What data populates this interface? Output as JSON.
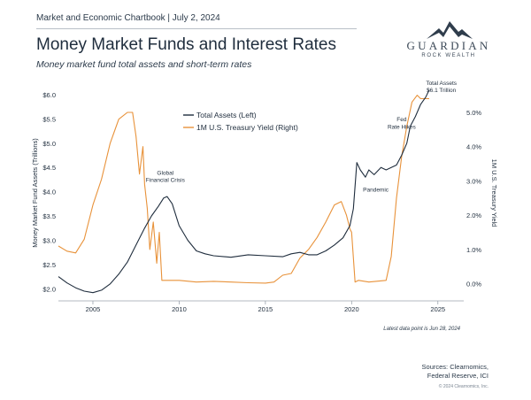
{
  "header": {
    "chartbook": "Market and Economic Chartbook | July 2, 2024",
    "title": "Money Market Funds and Interest Rates",
    "subtitle": "Money market fund total assets and short-term rates"
  },
  "logo": {
    "name": "GUARDIAN",
    "tagline": "ROCK WEALTH"
  },
  "footer": {
    "latest_note": "Latest data point is Jun 28, 2024",
    "sources_line1": "Sources: Clearnomics,",
    "sources_line2": "Federal Reserve, ICI",
    "copyright": "© 2024 Clearnomics, Inc."
  },
  "colors": {
    "assets": "#1f2d3d",
    "yield": "#e8923a",
    "axis": "#9aa3ad"
  },
  "chart_data": {
    "type": "line",
    "title": "Money Market Funds and Interest Rates",
    "ylabel": "Money Market Fund Assets (Trillions)",
    "y2label": "1M U.S. Treasury Yield",
    "xlim": [
      2003,
      2026.5
    ],
    "ylim": [
      1.75,
      6.2
    ],
    "y2lim": [
      -0.5,
      5.8
    ],
    "x_ticks": [
      2005,
      2010,
      2015,
      2020,
      2025
    ],
    "y_ticks": [
      2.0,
      2.5,
      3.0,
      3.5,
      4.0,
      4.5,
      5.0,
      5.5,
      6.0
    ],
    "y_tick_labels": [
      "$2.0",
      "$2.5",
      "$3.0",
      "$3.5",
      "$4.0",
      "$4.5",
      "$5.0",
      "$5.5",
      "$6.0"
    ],
    "y2_ticks": [
      0,
      1,
      2,
      3,
      4,
      5
    ],
    "y2_tick_labels": [
      "0.0%",
      "1.0%",
      "2.0%",
      "3.0%",
      "4.0%",
      "5.0%"
    ],
    "legend_position": "top-center",
    "series": [
      {
        "name": "Total Assets (Left)",
        "axis": "left",
        "x": [
          2003.0,
          2003.5,
          2004.0,
          2004.5,
          2005.0,
          2005.5,
          2006.0,
          2006.5,
          2007.0,
          2007.5,
          2008.0,
          2008.4,
          2008.8,
          2009.1,
          2009.3,
          2009.6,
          2010.0,
          2010.5,
          2011.0,
          2011.5,
          2012.0,
          2013.0,
          2014.0,
          2015.0,
          2016.0,
          2016.5,
          2017.0,
          2017.5,
          2018.0,
          2018.5,
          2019.0,
          2019.5,
          2019.9,
          2020.1,
          2020.3,
          2020.5,
          2020.8,
          2021.0,
          2021.3,
          2021.7,
          2022.0,
          2022.3,
          2022.6,
          2022.9,
          2023.2,
          2023.4,
          2023.7,
          2024.0,
          2024.3,
          2024.5
        ],
        "values": [
          2.25,
          2.12,
          2.02,
          1.95,
          1.92,
          1.97,
          2.1,
          2.3,
          2.55,
          2.9,
          3.25,
          3.5,
          3.7,
          3.87,
          3.9,
          3.75,
          3.3,
          3.0,
          2.78,
          2.72,
          2.68,
          2.65,
          2.7,
          2.68,
          2.66,
          2.72,
          2.75,
          2.7,
          2.7,
          2.78,
          2.9,
          3.05,
          3.3,
          3.65,
          4.6,
          4.45,
          4.3,
          4.45,
          4.35,
          4.5,
          4.45,
          4.5,
          4.55,
          4.75,
          5.0,
          5.35,
          5.55,
          5.8,
          5.95,
          6.1
        ]
      },
      {
        "name": "1M U.S. Treasury Yield (Right)",
        "axis": "right",
        "x": [
          2003.0,
          2003.5,
          2004.0,
          2004.5,
          2005.0,
          2005.5,
          2006.0,
          2006.5,
          2007.0,
          2007.3,
          2007.5,
          2007.7,
          2007.9,
          2008.0,
          2008.15,
          2008.3,
          2008.5,
          2008.7,
          2008.85,
          2009.0,
          2010.0,
          2011.0,
          2012.0,
          2013.0,
          2014.0,
          2015.0,
          2015.5,
          2016.0,
          2016.5,
          2017.0,
          2017.5,
          2018.0,
          2018.5,
          2019.0,
          2019.4,
          2019.7,
          2019.9,
          2020.0,
          2020.2,
          2020.4,
          2021.0,
          2022.0,
          2022.3,
          2022.6,
          2022.9,
          2023.2,
          2023.5,
          2023.8,
          2024.0,
          2024.5
        ],
        "values": [
          1.1,
          0.95,
          0.9,
          1.3,
          2.3,
          3.05,
          4.1,
          4.8,
          5.0,
          5.0,
          4.3,
          3.2,
          4.0,
          2.9,
          2.2,
          1.0,
          1.8,
          0.6,
          1.5,
          0.1,
          0.1,
          0.05,
          0.07,
          0.05,
          0.03,
          0.02,
          0.05,
          0.25,
          0.3,
          0.75,
          1.0,
          1.35,
          1.8,
          2.3,
          2.4,
          2.0,
          1.6,
          1.5,
          0.05,
          0.1,
          0.05,
          0.1,
          0.8,
          2.5,
          3.7,
          4.6,
          5.3,
          5.5,
          5.4,
          5.4
        ]
      }
    ],
    "annotations": [
      {
        "text": "Global",
        "x": 2009.2,
        "y": 4.35
      },
      {
        "text": "Financial Crisis",
        "x": 2009.2,
        "y": 4.2
      },
      {
        "text": "Pandemic",
        "x": 2021.4,
        "y": 4.0
      },
      {
        "text": "Fed",
        "x": 2022.9,
        "y": 5.45
      },
      {
        "text": "Rate Hikes",
        "x": 2022.9,
        "y": 5.3
      },
      {
        "text": "Total Assets",
        "x": 2025.2,
        "y": 6.2
      },
      {
        "text": "$6.1 Trillion",
        "x": 2025.2,
        "y": 6.05
      }
    ]
  }
}
